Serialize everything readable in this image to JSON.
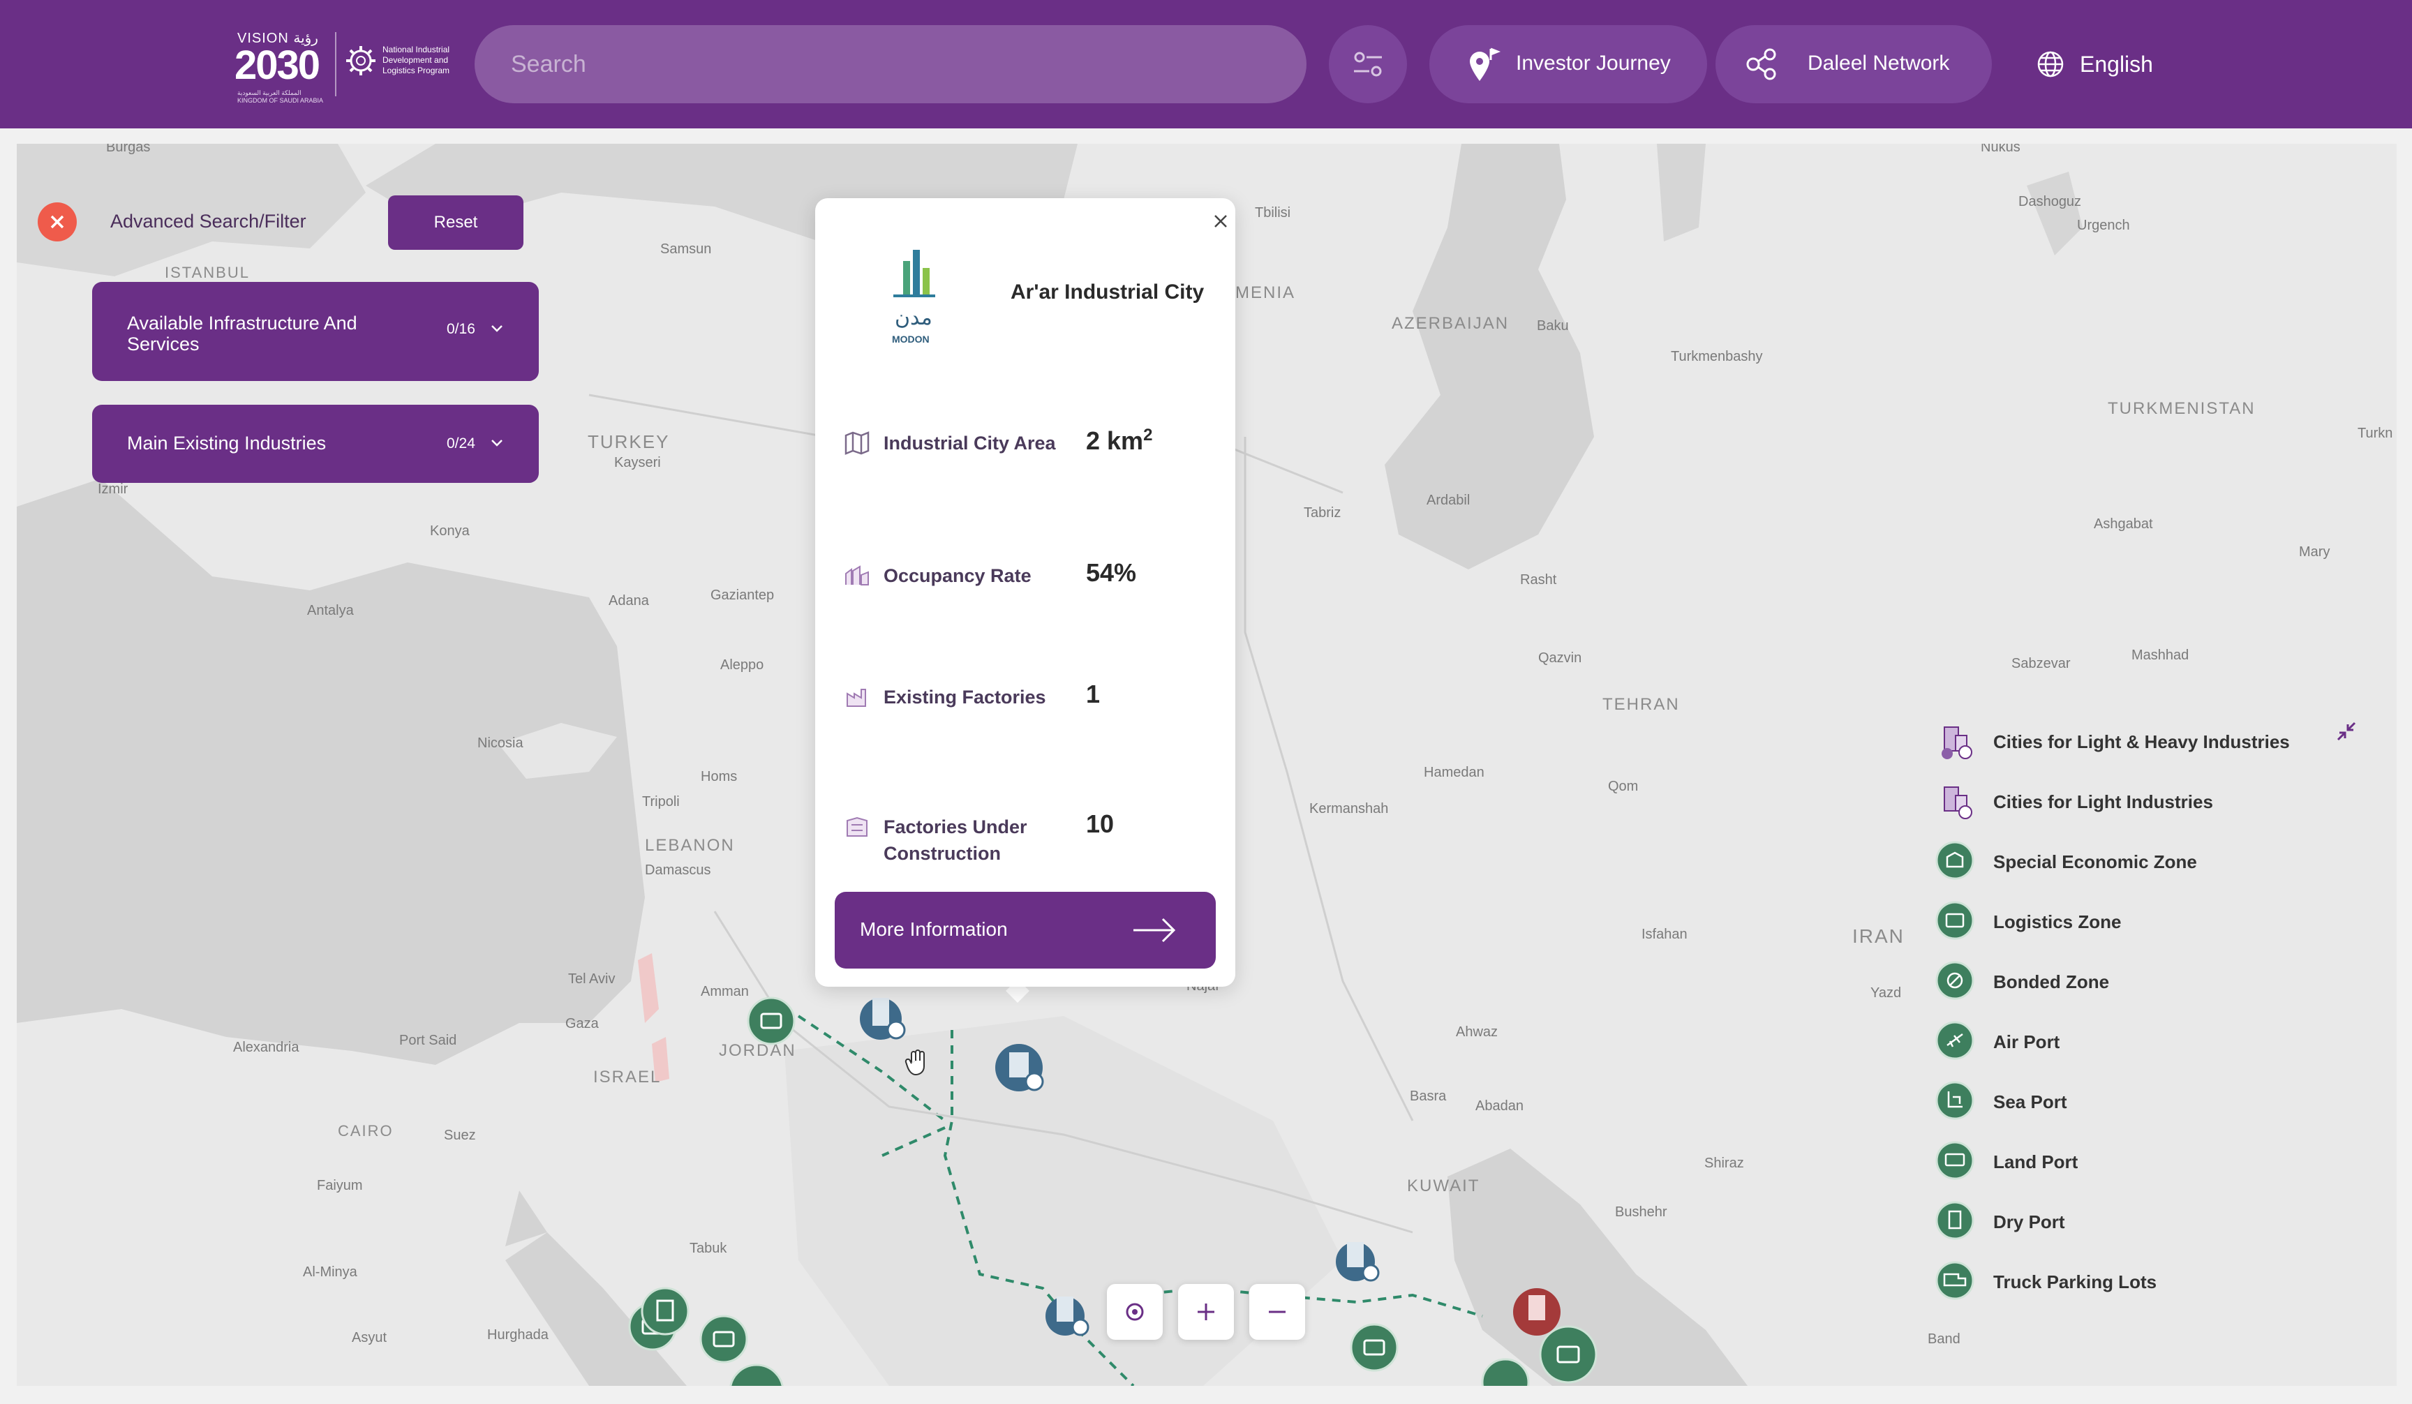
{
  "header": {
    "logo_vision_top": "VISION رؤية",
    "logo_vision_year": "2030",
    "logo_vision_sub": "المملكة العربية السعودية KINGDOM OF SAUDI ARABIA",
    "logo_program": "National Industrial Development and Logistics Program",
    "search_placeholder": "Search",
    "investor_journey": "Investor Journey",
    "daleel_network": "Daleel Network",
    "language": "English"
  },
  "filter_panel": {
    "title": "Advanced Search/Filter",
    "reset_label": "Reset",
    "accordions": [
      {
        "label": "Available Infrastructure And Services",
        "count": "0/16"
      },
      {
        "label": "Main Existing Industries",
        "count": "0/24"
      }
    ]
  },
  "popup": {
    "logo_text": "مدن",
    "logo_sub": "MODON",
    "title": "Ar'ar Industrial City",
    "rows": [
      {
        "label": "Industrial City Area",
        "value": "2 km",
        "unit_sup": "2"
      },
      {
        "label": "Occupancy Rate",
        "value": "54%"
      },
      {
        "label": "Existing Factories",
        "value": "1"
      },
      {
        "label": "Factories Under Construction",
        "value": "10"
      }
    ],
    "more_info": "More Information"
  },
  "legend": {
    "items": [
      {
        "label": "Cities for Light & Heavy Industries",
        "icon": "factory-heavy-icon"
      },
      {
        "label": "Cities for Light Industries",
        "icon": "factory-light-icon"
      },
      {
        "label": "Special Economic Zone",
        "icon": "special-economic-zone-icon"
      },
      {
        "label": "Logistics Zone",
        "icon": "logistics-zone-icon"
      },
      {
        "label": "Bonded Zone",
        "icon": "bonded-zone-icon"
      },
      {
        "label": "Air Port",
        "icon": "airport-icon"
      },
      {
        "label": "Sea Port",
        "icon": "seaport-icon"
      },
      {
        "label": "Land Port",
        "icon": "land-port-icon"
      },
      {
        "label": "Dry Port",
        "icon": "dry-port-icon"
      },
      {
        "label": "Truck Parking Lots",
        "icon": "truck-parking-icon"
      }
    ]
  },
  "map": {
    "places": [
      {
        "name": "Burgas"
      },
      {
        "name": "ISTANBUL"
      },
      {
        "name": "Samsun"
      },
      {
        "name": "TURKEY"
      },
      {
        "name": "Kayseri"
      },
      {
        "name": "Izmir"
      },
      {
        "name": "Konya"
      },
      {
        "name": "Antalya"
      },
      {
        "name": "Adana"
      },
      {
        "name": "Gaziantep"
      },
      {
        "name": "Aleppo"
      },
      {
        "name": "Nicosia"
      },
      {
        "name": "Homs"
      },
      {
        "name": "Tripoli"
      },
      {
        "name": "LEBANON"
      },
      {
        "name": "Damascus"
      },
      {
        "name": "Tel Aviv"
      },
      {
        "name": "Amman"
      },
      {
        "name": "Gaza"
      },
      {
        "name": "JORDAN"
      },
      {
        "name": "ISRAEL"
      },
      {
        "name": "Port Said"
      },
      {
        "name": "Alexandria"
      },
      {
        "name": "CAIRO"
      },
      {
        "name": "Suez"
      },
      {
        "name": "Faiyum"
      },
      {
        "name": "Al-Minya"
      },
      {
        "name": "Asyut"
      },
      {
        "name": "Hurghada"
      },
      {
        "name": "Tabuk"
      },
      {
        "name": "Tbilisi"
      },
      {
        "name": "MENIA"
      },
      {
        "name": "AZERBAIJAN"
      },
      {
        "name": "Baku"
      },
      {
        "name": "Tabriz"
      },
      {
        "name": "Ardabil"
      },
      {
        "name": "Rasht"
      },
      {
        "name": "Qazvin"
      },
      {
        "name": "TEHRAN"
      },
      {
        "name": "Hamedan"
      },
      {
        "name": "Kermanshah"
      },
      {
        "name": "Qom"
      },
      {
        "name": "Isfahan"
      },
      {
        "name": "IRAN"
      },
      {
        "name": "Yazd"
      },
      {
        "name": "Ahwaz"
      },
      {
        "name": "Basra"
      },
      {
        "name": "Abadan"
      },
      {
        "name": "KUWAIT"
      },
      {
        "name": "Shiraz"
      },
      {
        "name": "Bushehr"
      },
      {
        "name": "Najaf"
      },
      {
        "name": "Turkmenbashy"
      },
      {
        "name": "TURKMENISTAN"
      },
      {
        "name": "Ashgabat"
      },
      {
        "name": "Mary"
      },
      {
        "name": "Mashhad"
      },
      {
        "name": "Sabzevar"
      },
      {
        "name": "Nukus"
      },
      {
        "name": "Dashoguz"
      },
      {
        "name": "Urgench"
      },
      {
        "name": "Turkn"
      },
      {
        "name": "Band"
      }
    ]
  },
  "colors": {
    "brand": "#6a2f86",
    "close": "#ef5b4b",
    "marker": "#3e7f5e",
    "route": "#2f8a6a"
  }
}
